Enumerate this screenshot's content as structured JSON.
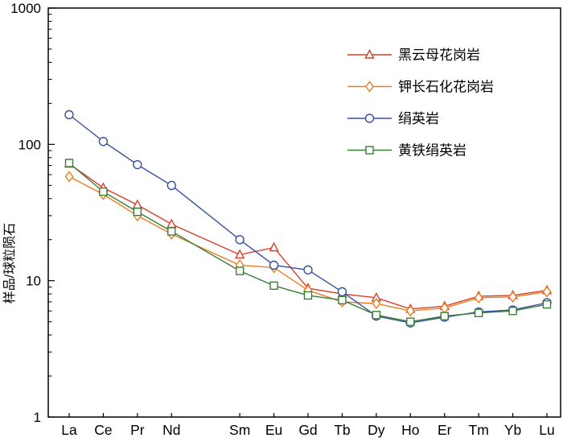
{
  "figure": {
    "background": "#ffffff",
    "axis_color": "#000000"
  },
  "chart_data": {
    "type": "line",
    "title": "",
    "xlabel": "",
    "ylabel": "样品/球粒陨石",
    "y_scale": "log",
    "ylim": [
      1,
      1000
    ],
    "y_major_ticks": [
      "1000",
      "100",
      "10",
      "1"
    ],
    "grid": false,
    "legend_position": "upper-right",
    "categories": [
      "La",
      "Ce",
      "Pr",
      "Nd",
      "Sm",
      "Eu",
      "Gd",
      "Tb",
      "Dy",
      "Ho",
      "Er",
      "Tm",
      "Yb",
      "Lu"
    ],
    "slot_indices": [
      0,
      1,
      2,
      3,
      5,
      6,
      7,
      8,
      9,
      10,
      11,
      12,
      13,
      14
    ],
    "total_slots": 15,
    "series": [
      {
        "name": "黑云母花岗岩",
        "marker": "triangle",
        "color": "#d6402b",
        "values": [
          72,
          48,
          36,
          26,
          15.5,
          17.5,
          8.8,
          8.0,
          7.5,
          6.2,
          6.5,
          7.7,
          7.8,
          8.5
        ]
      },
      {
        "name": "钾长石化花岗岩",
        "marker": "diamond",
        "color": "#ee7c1e",
        "values": [
          58,
          43,
          30,
          22,
          13,
          12.5,
          8.5,
          7.0,
          6.8,
          6.0,
          6.3,
          7.5,
          7.6,
          8.3
        ]
      },
      {
        "name": "绢英岩",
        "marker": "circle",
        "color": "#34519c",
        "values": [
          165,
          105,
          71,
          50,
          20,
          13,
          12,
          8.3,
          5.5,
          4.9,
          5.4,
          5.9,
          6.1,
          6.9
        ]
      },
      {
        "name": "黄铁绢英岩",
        "marker": "square",
        "color": "#3a7d3b",
        "values": [
          73,
          45,
          32,
          23,
          11.8,
          9.2,
          7.8,
          7.2,
          5.6,
          5.0,
          5.5,
          5.8,
          6.0,
          6.7
        ]
      }
    ]
  }
}
